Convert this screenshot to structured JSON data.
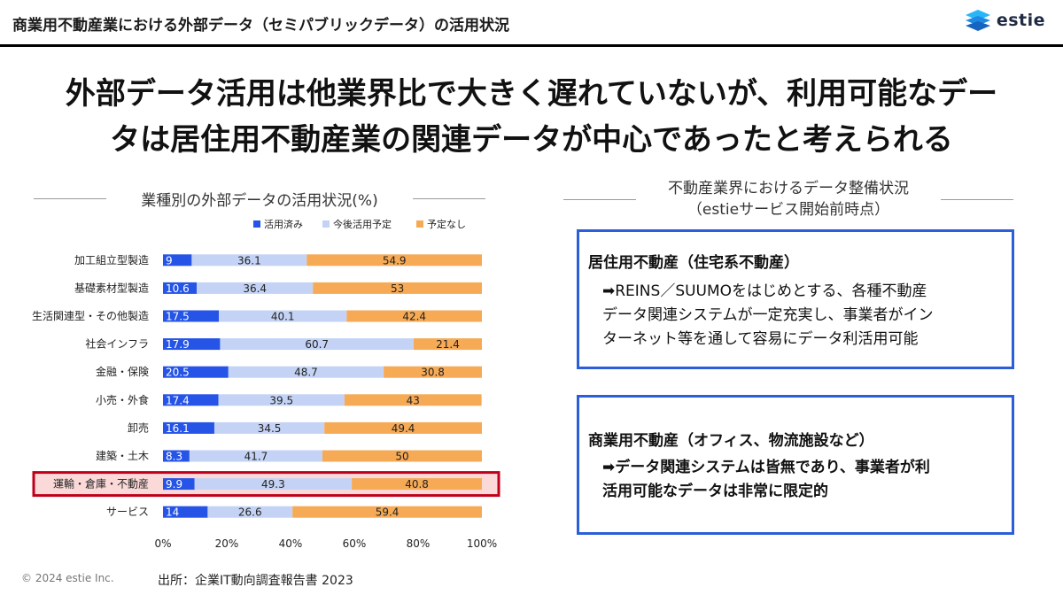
{
  "header": {
    "title": "商業用不動産業における外部データ（セミパブリックデータ）の活用状況",
    "logo_text": "estie"
  },
  "headline": {
    "line1": "外部データ活用は他業界比で大きく遅れていないが、利用可能なデー",
    "line2": "タは居住用不動産業の関連データが中心であったと考えられる"
  },
  "chart_section": {
    "title": "業種別の外部データの活用状況(%)"
  },
  "chart_data": {
    "type": "bar",
    "orientation": "horizontal",
    "stacked": true,
    "categories": [
      "加工組立型製造",
      "基礎素材型製造",
      "生活関連型・その他製造",
      "社会インフラ",
      "金融・保険",
      "小売・外食",
      "卸売",
      "建築・土木",
      "運輸・倉庫・不動産",
      "サービス"
    ],
    "series": [
      {
        "name": "活用済み",
        "color": "#2554e6",
        "values": [
          9,
          10.6,
          17.5,
          17.9,
          20.5,
          17.4,
          16.1,
          8.3,
          9.9,
          14
        ]
      },
      {
        "name": "今後活用予定",
        "color": "#c4d3f5",
        "values": [
          36.1,
          36.4,
          40.1,
          60.7,
          48.7,
          39.5,
          34.5,
          41.7,
          49.3,
          26.6
        ]
      },
      {
        "name": "予定なし",
        "color": "#f6aa55",
        "values": [
          54.9,
          53,
          42.4,
          21.4,
          30.8,
          43,
          49.4,
          50,
          40.8,
          59.4
        ]
      }
    ],
    "xlim": [
      0,
      100
    ],
    "x_ticks": [
      "0%",
      "20%",
      "40%",
      "60%",
      "80%",
      "100%"
    ],
    "legend_position": "top-right",
    "highlighted_category": "運輸・倉庫・不動産",
    "highlight_color": "#c0001a"
  },
  "status_section": {
    "title_line1": "不動産業界におけるデータ整備状況",
    "title_line2": "（estieサービス開始前時点）",
    "residential": {
      "title": "居住用不動産（住宅系不動産）",
      "line1": "➡REINS／SUUMOをはじめとする、各種不動産",
      "line2": "データ関連システムが一定充実し、事業者がイン",
      "line3": "ターネット等を通して容易にデータ利活用可能"
    },
    "commercial": {
      "title": "商業用不動産（オフィス、物流施設など）",
      "line1": "➡データ関連システムは皆無であり、事業者が利",
      "line2": "活用可能なデータは非常に限定的"
    },
    "box_border_color": "#2b5fd9"
  },
  "footer": {
    "copyright": "© 2024 estie Inc.",
    "source": "出所：企業IT動向調査報告書 2023"
  }
}
